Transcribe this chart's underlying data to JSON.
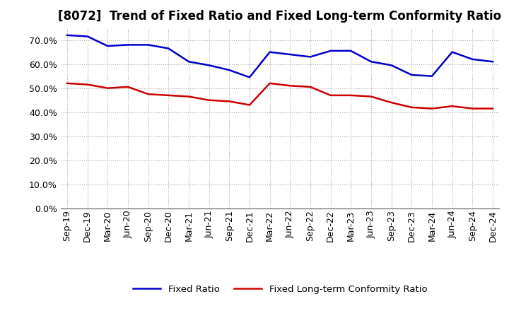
{
  "title": "[8072]  Trend of Fixed Ratio and Fixed Long-term Conformity Ratio",
  "x_labels": [
    "Sep-19",
    "Dec-19",
    "Mar-20",
    "Jun-20",
    "Sep-20",
    "Dec-20",
    "Mar-21",
    "Jun-21",
    "Sep-21",
    "Dec-21",
    "Mar-22",
    "Jun-22",
    "Sep-22",
    "Dec-22",
    "Mar-23",
    "Jun-23",
    "Sep-23",
    "Dec-23",
    "Mar-24",
    "Jun-24",
    "Sep-24",
    "Dec-24"
  ],
  "fixed_ratio": [
    72.0,
    71.5,
    67.5,
    68.0,
    68.0,
    66.5,
    61.0,
    59.5,
    57.5,
    54.5,
    65.0,
    64.0,
    63.0,
    65.5,
    65.5,
    61.0,
    59.5,
    55.5,
    55.0,
    65.0,
    62.0,
    61.0
  ],
  "fixed_lt_ratio": [
    52.0,
    51.5,
    50.0,
    50.5,
    47.5,
    47.0,
    46.5,
    45.0,
    44.5,
    43.0,
    52.0,
    51.0,
    50.5,
    47.0,
    47.0,
    46.5,
    44.0,
    42.0,
    41.5,
    42.5,
    41.5,
    41.5
  ],
  "fixed_ratio_color": "#0000CC",
  "fixed_lt_ratio_color": "#CC0000",
  "ylim": [
    0,
    75
  ],
  "yticks": [
    0,
    10,
    20,
    30,
    40,
    50,
    60,
    70
  ],
  "background_color": "#FFFFFF",
  "grid_color": "#AAAAAA",
  "legend_labels": [
    "Fixed Ratio",
    "Fixed Long-term Conformity Ratio"
  ],
  "title_fontsize": 12,
  "tick_fontsize": 9
}
